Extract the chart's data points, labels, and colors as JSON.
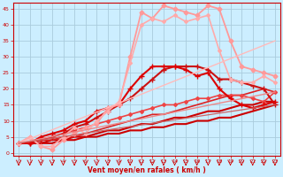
{
  "xlabel": "Vent moyen/en rafales ( km/h )",
  "background_color": "#cceeff",
  "grid_color": "#aaccdd",
  "xlim": [
    -0.5,
    23.5
  ],
  "ylim": [
    -1,
    47
  ],
  "yticks": [
    0,
    5,
    10,
    15,
    20,
    25,
    30,
    35,
    40,
    45
  ],
  "xticks": [
    0,
    1,
    2,
    3,
    4,
    5,
    6,
    7,
    8,
    9,
    10,
    11,
    12,
    13,
    14,
    15,
    16,
    17,
    18,
    19,
    20,
    21,
    22,
    23
  ],
  "lines": [
    {
      "x": [
        0,
        1,
        2,
        3,
        4,
        5,
        6,
        7,
        8,
        9,
        10,
        11,
        12,
        13,
        14,
        15,
        16,
        17,
        18,
        19,
        20,
        21,
        22,
        23
      ],
      "y": [
        3,
        3,
        3,
        3,
        4,
        4,
        5,
        5,
        6,
        6,
        7,
        7,
        8,
        8,
        9,
        9,
        10,
        10,
        11,
        11,
        12,
        13,
        14,
        15
      ],
      "color": "#cc0000",
      "lw": 1.5,
      "marker": null,
      "ms": 0
    },
    {
      "x": [
        0,
        1,
        2,
        3,
        4,
        5,
        6,
        7,
        8,
        9,
        10,
        11,
        12,
        13,
        14,
        15,
        16,
        17,
        18,
        19,
        20,
        21,
        22,
        23
      ],
      "y": [
        3,
        3,
        3,
        4,
        4,
        5,
        5,
        6,
        7,
        7,
        8,
        9,
        9,
        10,
        11,
        11,
        12,
        13,
        13,
        14,
        15,
        15,
        16,
        16
      ],
      "color": "#cc0000",
      "lw": 1.5,
      "marker": null,
      "ms": 0
    },
    {
      "x": [
        0,
        1,
        2,
        3,
        4,
        5,
        6,
        7,
        8,
        9,
        10,
        11,
        12,
        13,
        14,
        15,
        16,
        17,
        18,
        19,
        20,
        21,
        22,
        23
      ],
      "y": [
        3,
        3,
        4,
        4,
        5,
        5,
        6,
        7,
        8,
        9,
        10,
        11,
        12,
        12,
        13,
        14,
        15,
        16,
        17,
        18,
        18,
        19,
        20,
        19
      ],
      "color": "#dd2222",
      "lw": 1.2,
      "marker": null,
      "ms": 0
    },
    {
      "x": [
        0,
        1,
        2,
        3,
        4,
        5,
        6,
        7,
        8,
        9,
        10,
        11,
        12,
        13,
        14,
        15,
        16,
        17,
        18,
        19,
        20,
        21,
        22,
        23
      ],
      "y": [
        3,
        3,
        4,
        5,
        6,
        7,
        8,
        9,
        10,
        11,
        12,
        13,
        14,
        15,
        15,
        16,
        17,
        17,
        18,
        18,
        18,
        17,
        16,
        19
      ],
      "color": "#ee4444",
      "lw": 1.2,
      "marker": "D",
      "ms": 2.0
    },
    {
      "x": [
        0,
        1,
        2,
        3,
        4,
        5,
        6,
        7,
        8,
        9,
        10,
        11,
        12,
        13,
        14,
        15,
        16,
        17,
        18,
        19,
        20,
        21,
        22,
        23
      ],
      "y": [
        3,
        3,
        4,
        5,
        6,
        8,
        9,
        11,
        13,
        15,
        17,
        20,
        23,
        26,
        27,
        27,
        27,
        26,
        23,
        23,
        22,
        21,
        20,
        15
      ],
      "color": "#cc1111",
      "lw": 1.5,
      "marker": "+",
      "ms": 4
    },
    {
      "x": [
        0,
        1,
        2,
        3,
        4,
        5,
        6,
        7,
        8,
        9,
        10,
        11,
        12,
        13,
        14,
        15,
        16,
        17,
        18,
        19,
        20,
        21,
        22,
        23
      ],
      "y": [
        3,
        3,
        5,
        6,
        7,
        9,
        10,
        13,
        14,
        15,
        20,
        24,
        27,
        27,
        27,
        26,
        24,
        25,
        20,
        17,
        15,
        14,
        15,
        16
      ],
      "color": "#dd0000",
      "lw": 1.5,
      "marker": "+",
      "ms": 4
    },
    {
      "x": [
        0,
        1,
        2,
        3,
        4,
        5,
        6,
        7,
        8,
        9,
        10,
        11,
        12,
        13,
        14,
        15,
        16,
        17,
        18,
        19,
        20,
        21,
        22,
        23
      ],
      "y": [
        3,
        5,
        2,
        1,
        4,
        6,
        8,
        9,
        14,
        15,
        30,
        44,
        42,
        46,
        45,
        44,
        43,
        46,
        45,
        35,
        27,
        26,
        25,
        24
      ],
      "color": "#ff9999",
      "lw": 1.3,
      "marker": "D",
      "ms": 2.5
    },
    {
      "x": [
        0,
        1,
        2,
        3,
        4,
        5,
        6,
        7,
        8,
        9,
        10,
        11,
        12,
        13,
        14,
        15,
        16,
        17,
        18,
        19,
        20,
        21,
        22,
        23
      ],
      "y": [
        3,
        5,
        2,
        2,
        5,
        8,
        6,
        10,
        13,
        16,
        28,
        40,
        42,
        41,
        43,
        41,
        42,
        43,
        32,
        23,
        22,
        22,
        24,
        22
      ],
      "color": "#ffaaaa",
      "lw": 1.2,
      "marker": "D",
      "ms": 2.0
    },
    {
      "x": [
        0,
        23
      ],
      "y": [
        3,
        35
      ],
      "color": "#ffbbbb",
      "lw": 1.0,
      "marker": null,
      "ms": 0
    },
    {
      "x": [
        0,
        23
      ],
      "y": [
        3,
        19
      ],
      "color": "#ee8888",
      "lw": 1.0,
      "marker": null,
      "ms": 0
    },
    {
      "x": [
        0,
        23
      ],
      "y": [
        3,
        15
      ],
      "color": "#cc6666",
      "lw": 0.9,
      "marker": null,
      "ms": 0
    }
  ]
}
